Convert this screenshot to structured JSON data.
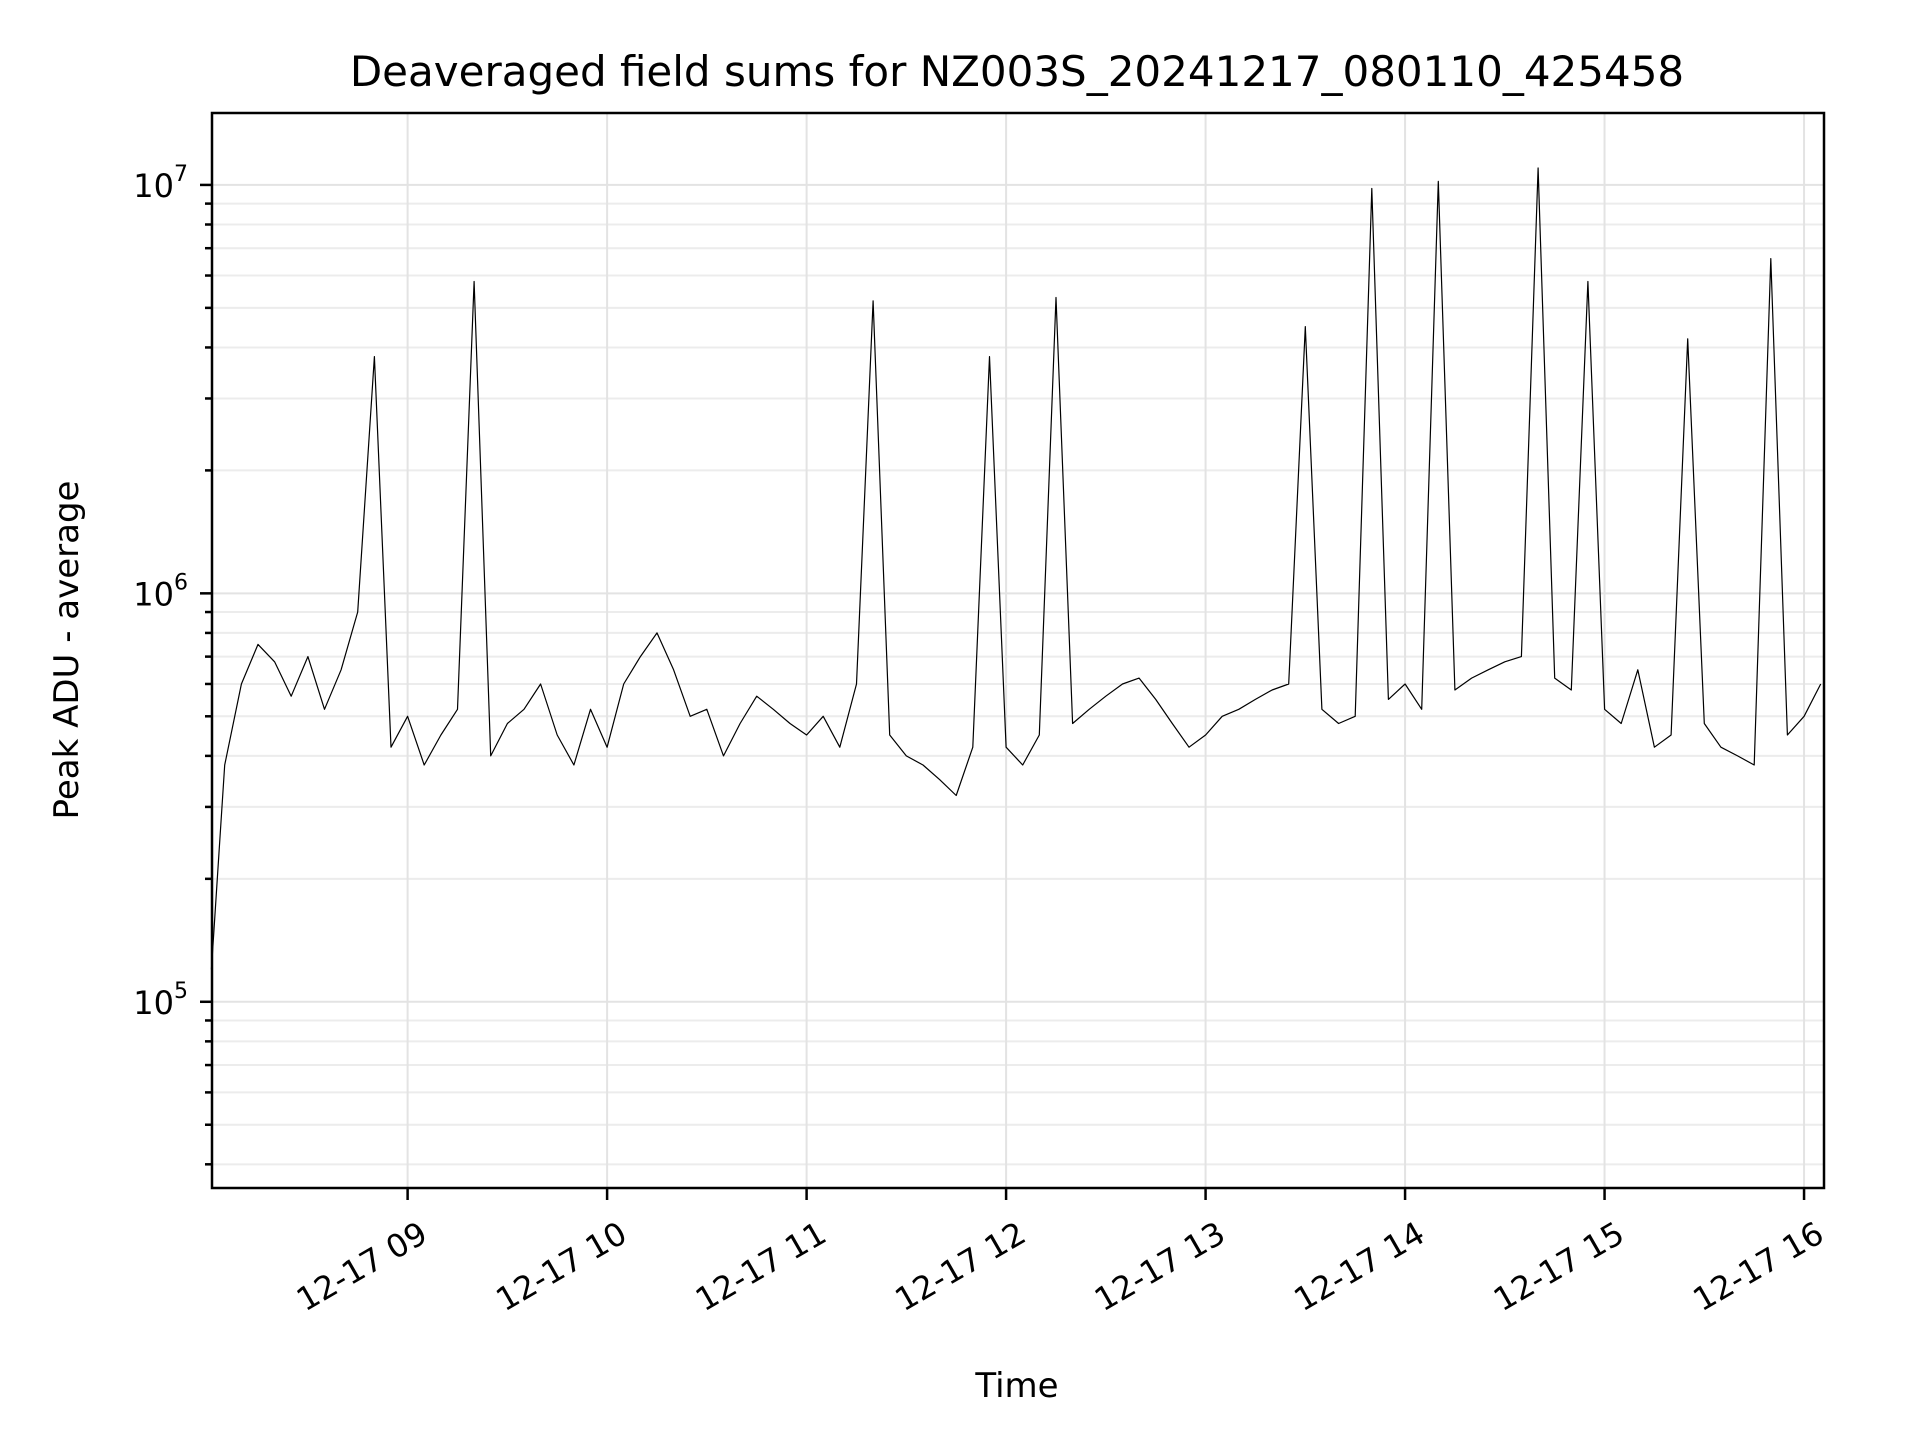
{
  "chart_data": {
    "type": "line",
    "title": "Deaveraged field sums for NZ003S_20241217_080110_425458",
    "xlabel": "Time",
    "ylabel": "Peak ADU - average",
    "yscale": "log",
    "xlim": [
      "2024-12-17 08:01:10",
      "2024-12-17 16:06:00"
    ],
    "ylim": [
      35000,
      15000000
    ],
    "grid": true,
    "x_ticks": [
      "12-17 09",
      "12-17 10",
      "12-17 11",
      "12-17 12",
      "12-17 13",
      "12-17 14",
      "12-17 15",
      "12-17 16"
    ],
    "y_ticks": [
      {
        "base": "10",
        "exp": "5",
        "value": 100000
      },
      {
        "base": "10",
        "exp": "6",
        "value": 1000000
      },
      {
        "base": "10",
        "exp": "7",
        "value": 10000000
      }
    ],
    "series_color": "#000000",
    "x": [
      "2024-12-17 08:01",
      "2024-12-17 08:05",
      "2024-12-17 08:10",
      "2024-12-17 08:15",
      "2024-12-17 08:20",
      "2024-12-17 08:25",
      "2024-12-17 08:30",
      "2024-12-17 08:35",
      "2024-12-17 08:40",
      "2024-12-17 08:45",
      "2024-12-17 08:50",
      "2024-12-17 08:55",
      "2024-12-17 09:00",
      "2024-12-17 09:05",
      "2024-12-17 09:10",
      "2024-12-17 09:15",
      "2024-12-17 09:20",
      "2024-12-17 09:25",
      "2024-12-17 09:30",
      "2024-12-17 09:35",
      "2024-12-17 09:40",
      "2024-12-17 09:45",
      "2024-12-17 09:50",
      "2024-12-17 09:55",
      "2024-12-17 10:00",
      "2024-12-17 10:05",
      "2024-12-17 10:10",
      "2024-12-17 10:15",
      "2024-12-17 10:20",
      "2024-12-17 10:25",
      "2024-12-17 10:30",
      "2024-12-17 10:35",
      "2024-12-17 10:40",
      "2024-12-17 10:45",
      "2024-12-17 10:50",
      "2024-12-17 10:55",
      "2024-12-17 11:00",
      "2024-12-17 11:05",
      "2024-12-17 11:10",
      "2024-12-17 11:15",
      "2024-12-17 11:20",
      "2024-12-17 11:25",
      "2024-12-17 11:30",
      "2024-12-17 11:35",
      "2024-12-17 11:40",
      "2024-12-17 11:45",
      "2024-12-17 11:50",
      "2024-12-17 11:55",
      "2024-12-17 12:00",
      "2024-12-17 12:05",
      "2024-12-17 12:10",
      "2024-12-17 12:15",
      "2024-12-17 12:20",
      "2024-12-17 12:25",
      "2024-12-17 12:30",
      "2024-12-17 12:35",
      "2024-12-17 12:40",
      "2024-12-17 12:45",
      "2024-12-17 12:50",
      "2024-12-17 12:55",
      "2024-12-17 13:00",
      "2024-12-17 13:05",
      "2024-12-17 13:10",
      "2024-12-17 13:15",
      "2024-12-17 13:20",
      "2024-12-17 13:25",
      "2024-12-17 13:30",
      "2024-12-17 13:35",
      "2024-12-17 13:40",
      "2024-12-17 13:45",
      "2024-12-17 13:50",
      "2024-12-17 13:55",
      "2024-12-17 14:00",
      "2024-12-17 14:05",
      "2024-12-17 14:10",
      "2024-12-17 14:15",
      "2024-12-17 14:20",
      "2024-12-17 14:25",
      "2024-12-17 14:30",
      "2024-12-17 14:35",
      "2024-12-17 14:40",
      "2024-12-17 14:45",
      "2024-12-17 14:50",
      "2024-12-17 14:55",
      "2024-12-17 15:00",
      "2024-12-17 15:05",
      "2024-12-17 15:10",
      "2024-12-17 15:15",
      "2024-12-17 15:20",
      "2024-12-17 15:25",
      "2024-12-17 15:30",
      "2024-12-17 15:35",
      "2024-12-17 15:40",
      "2024-12-17 15:45",
      "2024-12-17 15:50",
      "2024-12-17 15:55",
      "2024-12-17 16:00",
      "2024-12-17 16:05"
    ],
    "series": [
      {
        "values": [
          120000,
          380000,
          600000,
          750000,
          680000,
          560000,
          700000,
          520000,
          650000,
          900000,
          3800000,
          420000,
          500000,
          380000,
          450000,
          520000,
          5800000,
          400000,
          480000,
          520000,
          600000,
          450000,
          380000,
          520000,
          420000,
          600000,
          700000,
          800000,
          650000,
          500000,
          520000,
          400000,
          480000,
          560000,
          520000,
          480000,
          450000,
          500000,
          420000,
          600000,
          5200000,
          450000,
          400000,
          380000,
          350000,
          320000,
          420000,
          3800000,
          420000,
          380000,
          450000,
          5300000,
          480000,
          520000,
          560000,
          600000,
          620000,
          550000,
          480000,
          420000,
          450000,
          500000,
          520000,
          550000,
          580000,
          600000,
          4500000,
          520000,
          480000,
          500000,
          9800000,
          550000,
          600000,
          520000,
          10200000,
          580000,
          620000,
          650000,
          680000,
          700000,
          11000000,
          620000,
          580000,
          5800000,
          520000,
          480000,
          650000,
          420000,
          450000,
          4200000,
          480000,
          420000,
          400000,
          380000,
          6600000,
          450000,
          500000,
          600000
        ]
      }
    ]
  }
}
